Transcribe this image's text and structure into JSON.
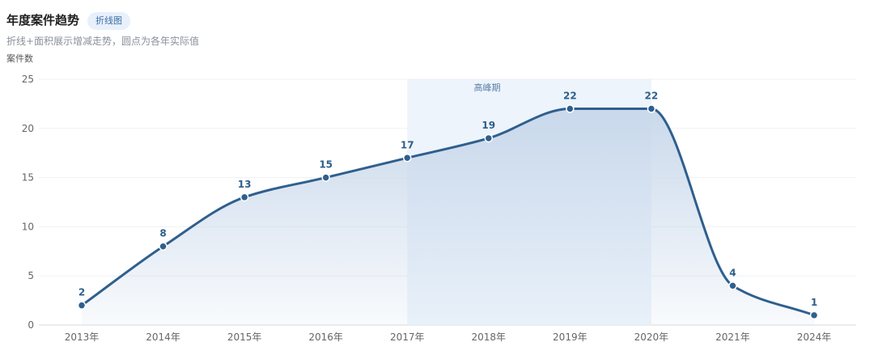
{
  "header": {
    "title": "年度案件趋势",
    "badge": "折线图",
    "subtitle": "折线+面积展示增减走势，圆点为各年实际值"
  },
  "chart_data": {
    "type": "area",
    "title": "年度案件趋势",
    "ylabel": "案件数",
    "xlabel": "",
    "categories": [
      "2013年",
      "2014年",
      "2015年",
      "2016年",
      "2017年",
      "2018年",
      "2019年",
      "2020年",
      "2021年",
      "2024年"
    ],
    "series": [
      {
        "values": [
          2,
          8,
          13,
          15,
          17,
          19,
          22,
          22,
          4,
          1
        ]
      }
    ],
    "ylim": [
      0,
      25
    ],
    "yticks": [
      0,
      5,
      10,
      15,
      20,
      25
    ],
    "grid": true,
    "highlight": {
      "label": "高峰期",
      "from": "2017年",
      "to": "2020年"
    },
    "colors": {
      "line": "#2f5f8e",
      "area": "#c9d8ea",
      "highlight": "#eaf2fb"
    }
  }
}
